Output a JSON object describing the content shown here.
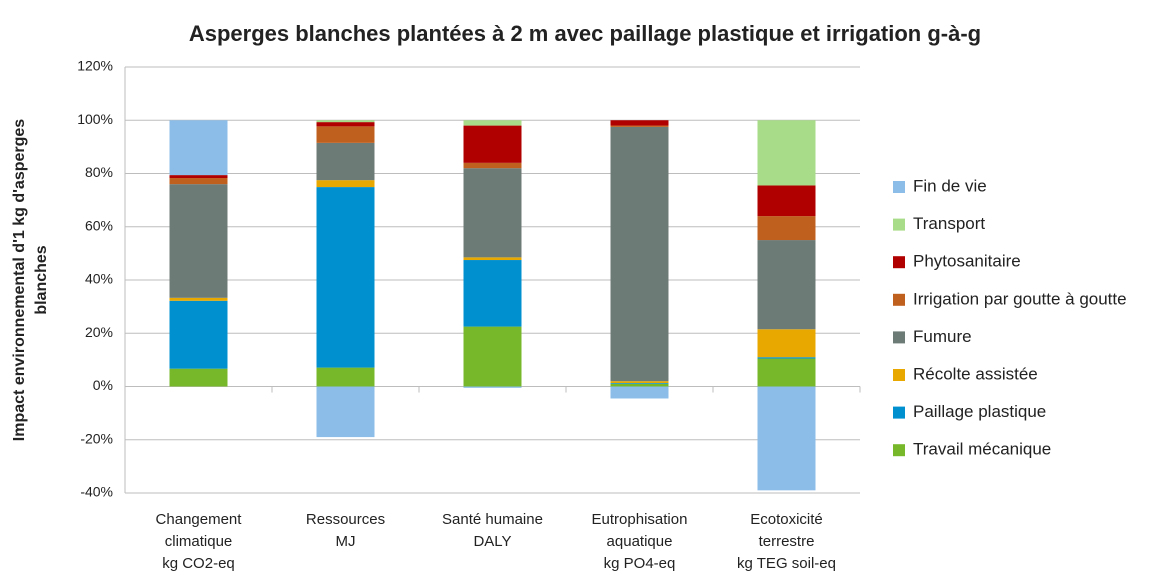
{
  "chart_data": {
    "type": "stacked_bar",
    "title": "Asperges blanches plantées à 2 m avec paillage plastique et irrigation g-à-g",
    "ylabel": [
      "Impact environnemental d'1 kg d'asperges",
      "blanches"
    ],
    "categories": [
      [
        "Changement",
        "climatique",
        "kg CO2-eq"
      ],
      [
        "Ressources",
        "MJ"
      ],
      [
        "Santé humaine",
        "DALY"
      ],
      [
        "Eutrophisation",
        "aquatique",
        "kg PO4-eq"
      ],
      [
        "Ecotoxicité",
        "terrestre",
        "kg TEG soil-eq"
      ]
    ],
    "series": [
      {
        "name": "Travail mécanique",
        "color": "#77b82a",
        "values": [
          6.7,
          7.1,
          22.5,
          1,
          10.5
        ]
      },
      {
        "name": "Paillage plastique",
        "color": "#0090d0",
        "values": [
          25.5,
          67.8,
          25,
          0.3,
          0.5
        ]
      },
      {
        "name": "Récolte assistée",
        "color": "#e8a800",
        "values": [
          1.1,
          2.6,
          1,
          0.7,
          10.5
        ]
      },
      {
        "name": "Fumure",
        "color": "#6d7b77",
        "values": [
          42.7,
          14,
          33.5,
          95.5,
          33.5
        ]
      },
      {
        "name": "Irrigation par goutte à goutte",
        "color": "#c0601f",
        "values": [
          2.3,
          6.2,
          2,
          0.5,
          9
        ]
      },
      {
        "name": "Phytosanitaire",
        "color": "#b00000",
        "values": [
          1.1,
          1.6,
          14,
          2,
          11.5
        ]
      },
      {
        "name": "Transport",
        "color": "#a8dc88",
        "values": [
          0,
          0.7,
          2,
          0,
          24.5
        ]
      },
      {
        "name": "Fin de vie",
        "color": "#8bbde8",
        "values": [
          20.6,
          -19,
          -0.5,
          -4.5,
          -39
        ]
      }
    ],
    "ylim": [
      -40,
      120
    ],
    "yticks": [
      {
        "value": -40,
        "label": "-40%"
      },
      {
        "value": -20,
        "label": "-20%"
      },
      {
        "value": 0,
        "label": "0%"
      },
      {
        "value": 20,
        "label": "20%"
      },
      {
        "value": 40,
        "label": "40%"
      },
      {
        "value": 60,
        "label": "60%"
      },
      {
        "value": 80,
        "label": "80%"
      },
      {
        "value": 100,
        "label": "100%"
      },
      {
        "value": 120,
        "label": "120%"
      }
    ],
    "grid": true,
    "legend": "right"
  }
}
